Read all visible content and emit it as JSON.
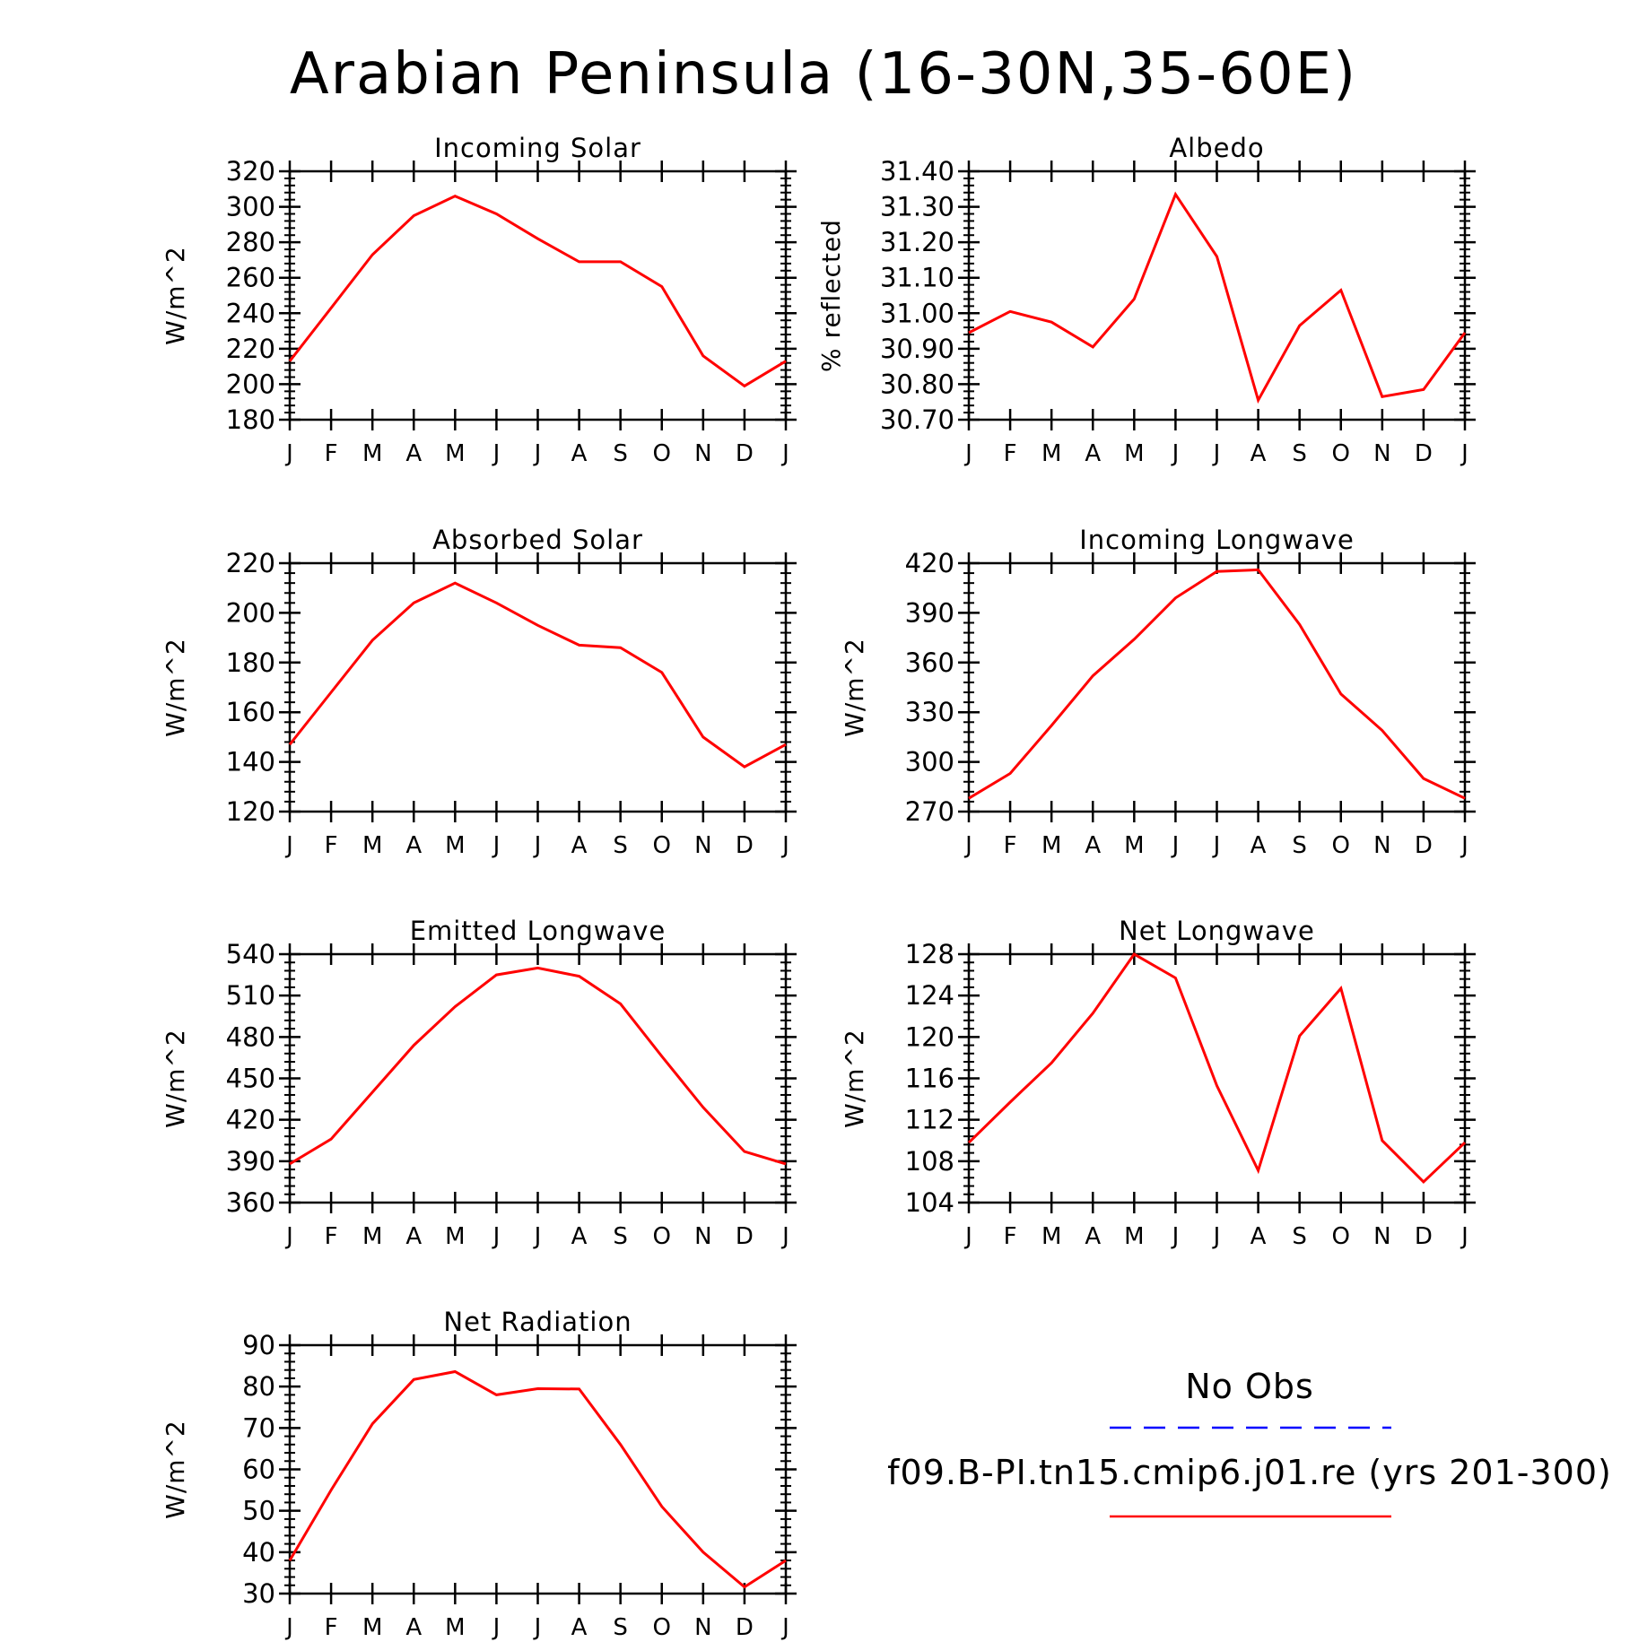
{
  "figure": {
    "title": "Arabian Peninsula (16-30N,35-60E)"
  },
  "legend": {
    "items": [
      {
        "label": "No Obs",
        "color": "#0000ff",
        "style": "dashed"
      },
      {
        "label": "f09.B-PI.tn15.cmip6.j01.re (yrs 201-300)",
        "color": "#ff0000",
        "style": "solid"
      }
    ]
  },
  "chart_data": [
    {
      "type": "line",
      "title": "Incoming Solar",
      "ylabel": "W/m^2",
      "ylim": [
        180,
        320
      ],
      "yticks": [
        "320",
        "300",
        "280",
        "260",
        "240",
        "220",
        "200",
        "180"
      ],
      "x": [
        "J",
        "F",
        "M",
        "A",
        "M",
        "J",
        "J",
        "A",
        "S",
        "O",
        "N",
        "D",
        "J"
      ],
      "series": [
        {
          "color": "#ff0000",
          "values": [
            213,
            243,
            273,
            295,
            306,
            296,
            282,
            269,
            269,
            255,
            216,
            199,
            213
          ]
        }
      ]
    },
    {
      "type": "line",
      "title": "Albedo",
      "ylabel": "% reflected",
      "ylim": [
        30.7,
        31.4
      ],
      "yticks": [
        "31.40",
        "31.30",
        "31.20",
        "31.10",
        "31.00",
        "30.90",
        "30.80",
        "30.70"
      ],
      "x": [
        "J",
        "F",
        "M",
        "A",
        "M",
        "J",
        "J",
        "A",
        "S",
        "O",
        "N",
        "D",
        "J"
      ],
      "series": [
        {
          "color": "#ff0000",
          "values": [
            30.945,
            31.005,
            30.975,
            30.905,
            31.04,
            31.335,
            31.16,
            30.755,
            30.965,
            31.065,
            30.765,
            30.785,
            30.945
          ]
        }
      ]
    },
    {
      "type": "line",
      "title": "Absorbed Solar",
      "ylabel": "W/m^2",
      "ylim": [
        120,
        220
      ],
      "yticks": [
        "220",
        "200",
        "180",
        "160",
        "140",
        "120"
      ],
      "x": [
        "J",
        "F",
        "M",
        "A",
        "M",
        "J",
        "J",
        "A",
        "S",
        "O",
        "N",
        "D",
        "J"
      ],
      "series": [
        {
          "color": "#ff0000",
          "values": [
            147,
            168,
            189,
            204,
            212,
            204,
            195,
            187,
            186,
            176,
            150,
            138,
            147
          ]
        }
      ]
    },
    {
      "type": "line",
      "title": "Incoming Longwave",
      "ylabel": "W/m^2",
      "ylim": [
        270,
        420
      ],
      "yticks": [
        "420",
        "390",
        "360",
        "330",
        "300",
        "270"
      ],
      "x": [
        "J",
        "F",
        "M",
        "A",
        "M",
        "J",
        "J",
        "A",
        "S",
        "O",
        "N",
        "D",
        "J"
      ],
      "series": [
        {
          "color": "#ff0000",
          "values": [
            278,
            293,
            322,
            352,
            374,
            399,
            415,
            416,
            383,
            341,
            319,
            290,
            278
          ]
        }
      ]
    },
    {
      "type": "line",
      "title": "Emitted Longwave",
      "ylabel": "W/m^2",
      "ylim": [
        360,
        540
      ],
      "yticks": [
        "540",
        "510",
        "480",
        "450",
        "420",
        "390",
        "360"
      ],
      "x": [
        "J",
        "F",
        "M",
        "A",
        "M",
        "J",
        "J",
        "A",
        "S",
        "O",
        "N",
        "D",
        "J"
      ],
      "series": [
        {
          "color": "#ff0000",
          "values": [
            388,
            406,
            440,
            474,
            502,
            525,
            530,
            524,
            504,
            466,
            429,
            397,
            388
          ]
        }
      ]
    },
    {
      "type": "line",
      "title": "Net Longwave",
      "ylabel": "W/m^2",
      "ylim": [
        104,
        128
      ],
      "yticks": [
        "128",
        "124",
        "120",
        "116",
        "112",
        "108",
        "104"
      ],
      "x": [
        "J",
        "F",
        "M",
        "A",
        "M",
        "J",
        "J",
        "A",
        "S",
        "O",
        "N",
        "D",
        "J"
      ],
      "series": [
        {
          "color": "#ff0000",
          "values": [
            109.8,
            113.7,
            117.5,
            122.3,
            128.0,
            125.7,
            115.3,
            107.1,
            120.1,
            124.7,
            110.0,
            106.0,
            109.8
          ]
        }
      ]
    },
    {
      "type": "line",
      "title": "Net Radiation",
      "ylabel": "W/m^2",
      "ylim": [
        30,
        90
      ],
      "yticks": [
        "90",
        "80",
        "70",
        "60",
        "50",
        "40",
        "30"
      ],
      "x": [
        "J",
        "F",
        "M",
        "A",
        "M",
        "J",
        "J",
        "A",
        "S",
        "O",
        "N",
        "D",
        "J"
      ],
      "series": [
        {
          "color": "#ff0000",
          "values": [
            38,
            55,
            71,
            81.7,
            83.6,
            78,
            79.5,
            79.4,
            66,
            51,
            40,
            31.6,
            38
          ]
        }
      ]
    }
  ]
}
